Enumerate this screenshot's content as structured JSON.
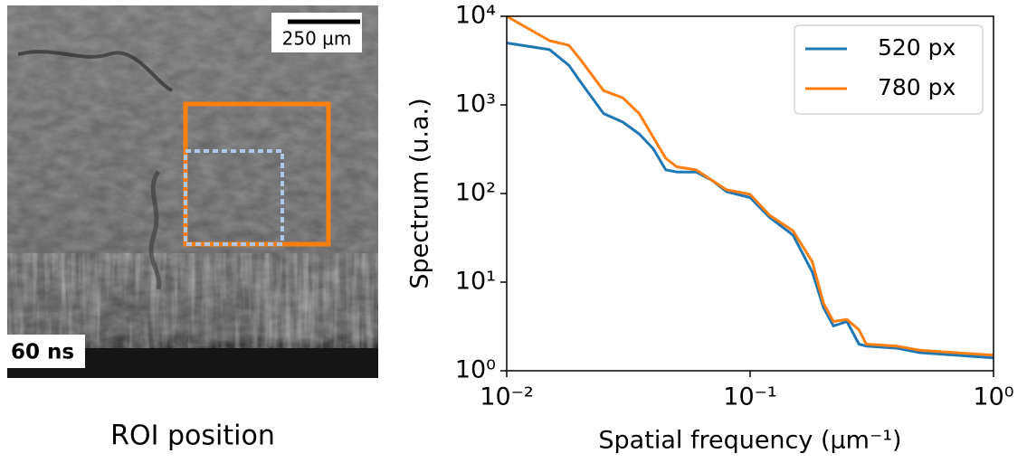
{
  "image": {
    "scale_bar": "250 µm",
    "time": "60 ns",
    "caption": "ROI position"
  },
  "chart_data": {
    "type": "line",
    "x_label": "Spatial frequency (μm⁻¹)",
    "y_label": "Spectrum (u.a.)",
    "x": [
      0.01,
      0.015,
      0.018,
      0.02,
      0.025,
      0.03,
      0.035,
      0.04,
      0.045,
      0.05,
      0.06,
      0.07,
      0.08,
      0.1,
      0.12,
      0.15,
      0.18,
      0.2,
      0.22,
      0.25,
      0.28,
      0.3,
      0.4,
      0.5,
      0.7,
      1.0
    ],
    "series": [
      {
        "name": "520 px",
        "color": "#1f77b4",
        "values": [
          5000,
          4200,
          2800,
          1850,
          800,
          640,
          470,
          320,
          185,
          175,
          175,
          140,
          105,
          90,
          54,
          34,
          13,
          5.2,
          3.2,
          3.6,
          2.0,
          1.9,
          1.8,
          1.6,
          1.5,
          1.4
        ]
      },
      {
        "name": "780 px",
        "color": "#ff7f0e",
        "values": [
          10000,
          5300,
          4700,
          3300,
          1450,
          1200,
          800,
          430,
          250,
          200,
          185,
          140,
          110,
          98,
          57,
          38,
          17,
          5.8,
          3.6,
          3.8,
          2.9,
          2.0,
          1.9,
          1.7,
          1.6,
          1.5
        ]
      }
    ],
    "xlim": [
      0.01,
      1
    ],
    "ylim": [
      1,
      10000
    ],
    "log_x": true,
    "log_y": true,
    "xticks": [
      {
        "value": 0.01,
        "label": "10⁻²"
      },
      {
        "value": 0.1,
        "label": "10⁻¹"
      },
      {
        "value": 1,
        "label": "10⁰"
      }
    ],
    "yticks": [
      {
        "value": 1,
        "label": "10⁰"
      },
      {
        "value": 10,
        "label": "10¹"
      },
      {
        "value": 100,
        "label": "10²"
      },
      {
        "value": 1000,
        "label": "10³"
      },
      {
        "value": 10000,
        "label": "10⁴"
      }
    ],
    "legend": "upper right"
  }
}
